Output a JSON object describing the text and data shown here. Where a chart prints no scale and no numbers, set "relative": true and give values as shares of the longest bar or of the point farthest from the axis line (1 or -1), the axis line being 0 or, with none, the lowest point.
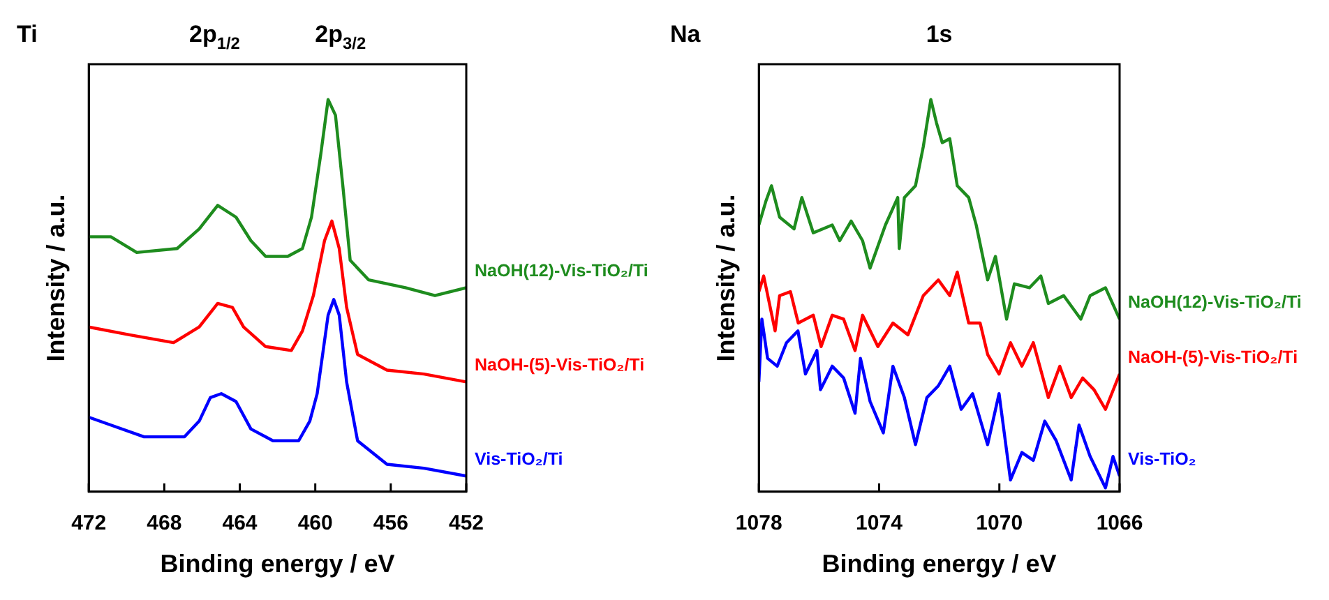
{
  "chart_data": [
    {
      "type": "line",
      "title": "Ti",
      "annotations": [
        "2p$_{1/2}$",
        "2p$_{3/2}$"
      ],
      "xlabel": "Binding energy / eV",
      "ylabel": "Intensity / a.u.",
      "relative": true,
      "xlim": [
        472,
        452
      ],
      "xticks": [
        472,
        468,
        464,
        460,
        456,
        452
      ],
      "series": [
        {
          "name": "NaOH(12)-Vis-TiO₂/Ti",
          "color": "#1e8c1e",
          "x": [
            472,
            470.83,
            469.46,
            467.32,
            466.15,
            465.17,
            464.2,
            463.41,
            462.63,
            461.46,
            460.68,
            460.2,
            459.71,
            459.32,
            458.93,
            458.54,
            458.15,
            457.17,
            455.22,
            453.66,
            452
          ],
          "values": [
            0.65,
            0.65,
            0.61,
            0.62,
            0.67,
            0.73,
            0.7,
            0.64,
            0.6,
            0.6,
            0.62,
            0.7,
            0.86,
            1.0,
            0.96,
            0.78,
            0.59,
            0.54,
            0.52,
            0.5,
            0.52
          ]
        },
        {
          "name": "NaOH-(5)-Vis-TiO₂/Ti",
          "color": "#ff0000",
          "x": [
            472,
            469.85,
            467.51,
            466.15,
            465.17,
            464.39,
            463.8,
            462.63,
            461.27,
            460.68,
            460.1,
            459.51,
            459.12,
            458.73,
            458.34,
            457.76,
            456.2,
            454.24,
            452
          ],
          "values": [
            0.42,
            0.4,
            0.38,
            0.42,
            0.48,
            0.47,
            0.42,
            0.37,
            0.36,
            0.41,
            0.5,
            0.64,
            0.69,
            0.62,
            0.47,
            0.35,
            0.31,
            0.3,
            0.28
          ]
        },
        {
          "name": "Vis-TiO₂/Ti",
          "color": "#0000ff",
          "x": [
            472,
            470.83,
            469.07,
            466.93,
            466.15,
            465.56,
            464.98,
            464.2,
            463.41,
            462.24,
            460.88,
            460.29,
            459.9,
            459.32,
            459.02,
            458.73,
            458.34,
            457.76,
            456.2,
            454.24,
            452
          ],
          "values": [
            0.19,
            0.17,
            0.14,
            0.14,
            0.18,
            0.24,
            0.25,
            0.23,
            0.16,
            0.13,
            0.13,
            0.18,
            0.25,
            0.45,
            0.49,
            0.45,
            0.28,
            0.13,
            0.07,
            0.06,
            0.04
          ]
        }
      ]
    },
    {
      "type": "line",
      "title": "Na",
      "annotations": [
        "1s"
      ],
      "xlabel": "Binding energy / eV",
      "ylabel": "Intensity / a.u.",
      "relative": true,
      "xlim": [
        1078,
        1066
      ],
      "xticks": [
        1078,
        1074,
        1070,
        1066
      ],
      "series": [
        {
          "name": "NaOH(12)-Vis-TiO₂/Ti",
          "color": "#1e8c1e",
          "x": [
            1078,
            1077.77,
            1077.58,
            1077.31,
            1076.83,
            1076.57,
            1076.19,
            1075.56,
            1075.31,
            1074.93,
            1074.55,
            1074.3,
            1073.79,
            1073.38,
            1073.33,
            1073.16,
            1072.79,
            1072.53,
            1072.28,
            1072.09,
            1071.9,
            1071.65,
            1071.4,
            1071.02,
            1070.77,
            1070.39,
            1070.13,
            1069.76,
            1069.5,
            1069,
            1068.62,
            1068.37,
            1067.86,
            1067.29,
            1066.98,
            1066.47,
            1066
          ],
          "values": [
            0.68,
            0.74,
            0.78,
            0.7,
            0.67,
            0.75,
            0.66,
            0.68,
            0.64,
            0.69,
            0.64,
            0.57,
            0.68,
            0.75,
            0.62,
            0.75,
            0.78,
            0.88,
            1.0,
            0.94,
            0.89,
            0.9,
            0.78,
            0.75,
            0.68,
            0.54,
            0.6,
            0.44,
            0.53,
            0.52,
            0.55,
            0.48,
            0.5,
            0.44,
            0.5,
            0.52,
            0.44
          ]
        },
        {
          "name": "NaOH-(5)-Vis-TiO₂/Ti",
          "color": "#ff0000",
          "x": [
            1078,
            1077.84,
            1077.46,
            1077.31,
            1076.95,
            1076.69,
            1076.19,
            1075.93,
            1075.56,
            1075.18,
            1074.8,
            1074.55,
            1074.04,
            1073.54,
            1073.04,
            1072.53,
            1072.03,
            1071.65,
            1071.4,
            1071.02,
            1070.64,
            1070.39,
            1070.01,
            1069.63,
            1069.25,
            1068.87,
            1068.37,
            1067.99,
            1067.61,
            1067.23,
            1066.85,
            1066.47,
            1066
          ],
          "values": [
            0.51,
            0.55,
            0.41,
            0.5,
            0.51,
            0.43,
            0.45,
            0.37,
            0.45,
            0.44,
            0.36,
            0.45,
            0.37,
            0.43,
            0.4,
            0.5,
            0.54,
            0.5,
            0.56,
            0.43,
            0.43,
            0.35,
            0.3,
            0.38,
            0.32,
            0.38,
            0.24,
            0.32,
            0.24,
            0.29,
            0.26,
            0.21,
            0.3
          ]
        },
        {
          "name": "Vis-TiO₂",
          "color": "#0000ff",
          "x": [
            1078,
            1077.9,
            1077.71,
            1077.39,
            1077.08,
            1076.7,
            1076.45,
            1076.07,
            1075.95,
            1075.56,
            1075.18,
            1074.8,
            1074.62,
            1074.3,
            1073.86,
            1073.54,
            1073.16,
            1072.79,
            1072.41,
            1072.03,
            1071.65,
            1071.27,
            1070.89,
            1070.39,
            1070.01,
            1069.63,
            1069.25,
            1068.87,
            1068.49,
            1068.11,
            1067.61,
            1067.35,
            1066.98,
            1066.47,
            1066.22,
            1066
          ],
          "values": [
            0.28,
            0.44,
            0.34,
            0.32,
            0.38,
            0.41,
            0.3,
            0.36,
            0.26,
            0.32,
            0.29,
            0.2,
            0.34,
            0.23,
            0.15,
            0.32,
            0.24,
            0.12,
            0.24,
            0.27,
            0.32,
            0.21,
            0.25,
            0.12,
            0.25,
            0.03,
            0.1,
            0.08,
            0.18,
            0.13,
            0.03,
            0.17,
            0.09,
            0.01,
            0.09,
            0.04
          ]
        }
      ]
    }
  ]
}
